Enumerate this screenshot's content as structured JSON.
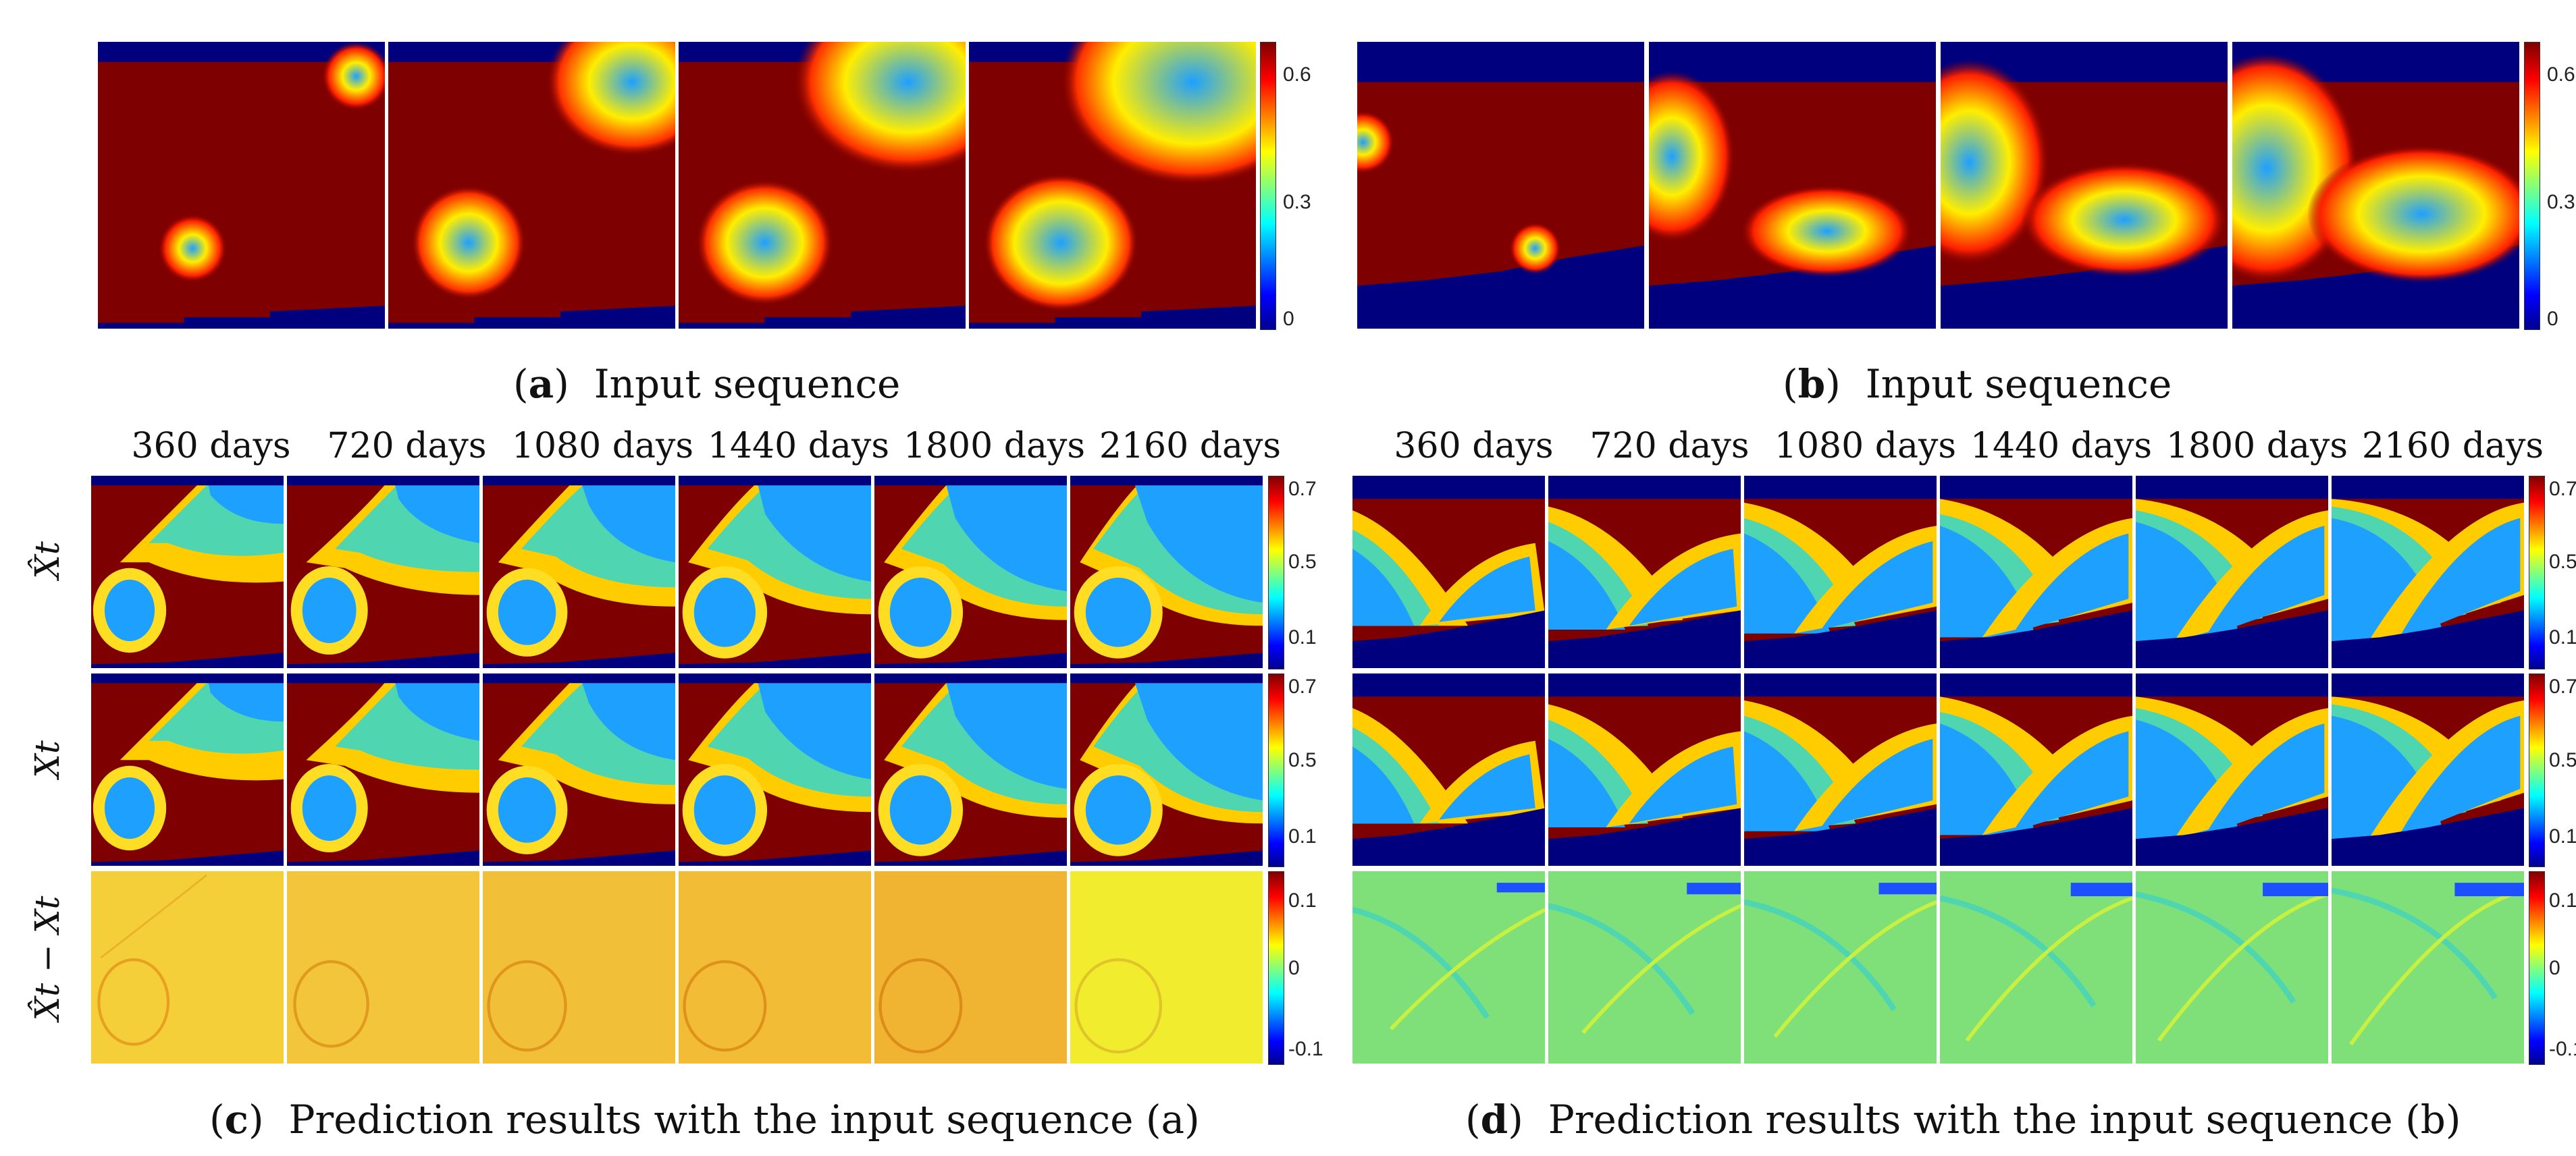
{
  "panels": {
    "a": {
      "letter": "a",
      "caption": "Input sequence",
      "colorbar_ticks": [
        "0.6",
        "0.3",
        "0"
      ]
    },
    "b": {
      "letter": "b",
      "caption": "Input sequence",
      "colorbar_ticks": [
        "0.6",
        "0.3",
        "0"
      ]
    },
    "c": {
      "letter": "c",
      "caption": "Prediction results with the input sequence (a)",
      "columns": [
        "360 days",
        "720 days",
        "1080 days",
        "1440 days",
        "1800 days",
        "2160 days"
      ],
      "rows": [
        "X̂t",
        "Xt",
        "X̂t − Xt"
      ],
      "colorbar_ticks_main": [
        "0.7",
        "0.5",
        "0.1"
      ],
      "colorbar_ticks_diff": [
        "0.1",
        "0",
        "-0.1"
      ]
    },
    "d": {
      "letter": "d",
      "caption": "Prediction results with the input sequence (b)",
      "columns": [
        "360 days",
        "720 days",
        "1080 days",
        "1440 days",
        "1800 days",
        "2160 days"
      ],
      "rows": [
        "X̂t",
        "Xt",
        "X̂t − Xt"
      ],
      "colorbar_ticks_main": [
        "0.7",
        "0.5",
        "0.1"
      ],
      "colorbar_ticks_diff": [
        "0.1",
        "0",
        "-0.1"
      ]
    }
  },
  "colors": {
    "dark_red": "#7f0000",
    "navy": "#00007f",
    "cyan": "#1ea0ff",
    "yellow": "#f5d23c",
    "green": "#7fe07a"
  }
}
